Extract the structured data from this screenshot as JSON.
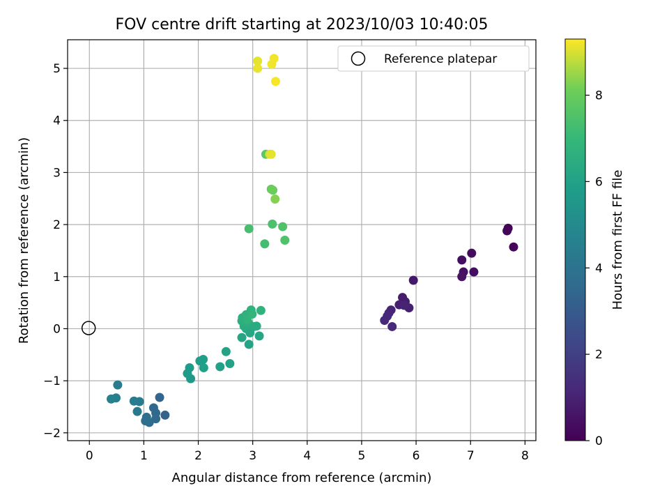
{
  "chart_data": {
    "type": "scatter",
    "title": "FOV centre drift starting at 2023/10/03 10:40:05",
    "xlabel": "Angular distance from reference (arcmin)",
    "ylabel": "Rotation from reference (arcmin)",
    "xlim": [
      -0.4,
      8.2
    ],
    "ylim": [
      -2.15,
      5.55
    ],
    "xticks": [
      0,
      1,
      2,
      3,
      4,
      5,
      6,
      7,
      8
    ],
    "yticks": [
      -2,
      -1,
      0,
      1,
      2,
      3,
      4,
      5
    ],
    "grid": true,
    "legend": {
      "position": "upper right",
      "entries": [
        "Reference platepar"
      ]
    },
    "reference_point": {
      "x": 0,
      "y": 0,
      "label": "Reference platepar"
    },
    "colorbar": {
      "label": "Hours from first FF file",
      "colormap": "viridis",
      "range": [
        0,
        9.3
      ],
      "ticks": [
        0,
        2,
        4,
        6,
        8
      ]
    },
    "points": [
      {
        "x": 7.69,
        "y": 1.93,
        "c": 0.05
      },
      {
        "x": 7.67,
        "y": 1.88,
        "c": 0.1
      },
      {
        "x": 7.79,
        "y": 1.57,
        "c": 0.15
      },
      {
        "x": 7.02,
        "y": 1.45,
        "c": 0.3
      },
      {
        "x": 7.06,
        "y": 1.09,
        "c": 0.35
      },
      {
        "x": 6.84,
        "y": 1.32,
        "c": 0.4
      },
      {
        "x": 6.87,
        "y": 1.09,
        "c": 0.45
      },
      {
        "x": 6.84,
        "y": 1.0,
        "c": 0.5
      },
      {
        "x": 5.95,
        "y": 0.93,
        "c": 0.7
      },
      {
        "x": 5.75,
        "y": 0.6,
        "c": 0.8
      },
      {
        "x": 5.8,
        "y": 0.52,
        "c": 0.85
      },
      {
        "x": 5.69,
        "y": 0.46,
        "c": 0.9
      },
      {
        "x": 5.87,
        "y": 0.4,
        "c": 0.95
      },
      {
        "x": 5.78,
        "y": 0.45,
        "c": 1.0
      },
      {
        "x": 5.54,
        "y": 0.36,
        "c": 1.05
      },
      {
        "x": 5.5,
        "y": 0.3,
        "c": 1.1
      },
      {
        "x": 5.47,
        "y": 0.24,
        "c": 1.15
      },
      {
        "x": 5.42,
        "y": 0.16,
        "c": 1.2
      },
      {
        "x": 5.56,
        "y": 0.04,
        "c": 1.25
      },
      {
        "x": 1.39,
        "y": -1.66,
        "c": 3.3
      },
      {
        "x": 1.29,
        "y": -1.32,
        "c": 3.4
      },
      {
        "x": 1.18,
        "y": -1.52,
        "c": 3.5
      },
      {
        "x": 1.22,
        "y": -1.62,
        "c": 3.55
      },
      {
        "x": 1.22,
        "y": -1.73,
        "c": 3.6
      },
      {
        "x": 1.1,
        "y": -1.8,
        "c": 3.7
      },
      {
        "x": 1.03,
        "y": -1.77,
        "c": 3.75
      },
      {
        "x": 1.05,
        "y": -1.7,
        "c": 3.8
      },
      {
        "x": 0.88,
        "y": -1.59,
        "c": 4.2
      },
      {
        "x": 0.92,
        "y": -1.4,
        "c": 4.3
      },
      {
        "x": 0.82,
        "y": -1.39,
        "c": 4.35
      },
      {
        "x": 0.52,
        "y": -1.08,
        "c": 4.4
      },
      {
        "x": 0.49,
        "y": -1.33,
        "c": 4.5
      },
      {
        "x": 0.4,
        "y": -1.35,
        "c": 4.55
      },
      {
        "x": 1.86,
        "y": -0.96,
        "c": 5.6
      },
      {
        "x": 1.8,
        "y": -0.86,
        "c": 5.7
      },
      {
        "x": 1.84,
        "y": -0.75,
        "c": 5.75
      },
      {
        "x": 2.03,
        "y": -0.62,
        "c": 5.8
      },
      {
        "x": 2.09,
        "y": -0.59,
        "c": 5.85
      },
      {
        "x": 2.1,
        "y": -0.75,
        "c": 5.9
      },
      {
        "x": 2.4,
        "y": -0.73,
        "c": 5.95
      },
      {
        "x": 2.51,
        "y": -0.44,
        "c": 6.0
      },
      {
        "x": 2.58,
        "y": -0.67,
        "c": 6.05
      },
      {
        "x": 2.93,
        "y": -0.3,
        "c": 6.1
      },
      {
        "x": 2.8,
        "y": -0.17,
        "c": 6.15
      },
      {
        "x": 3.12,
        "y": -0.14,
        "c": 6.2
      },
      {
        "x": 2.95,
        "y": -0.08,
        "c": 6.25
      },
      {
        "x": 2.88,
        "y": 0.0,
        "c": 6.3
      },
      {
        "x": 3.02,
        "y": 0.04,
        "c": 6.35
      },
      {
        "x": 3.07,
        "y": 0.05,
        "c": 6.4
      },
      {
        "x": 2.84,
        "y": 0.05,
        "c": 6.45
      },
      {
        "x": 2.92,
        "y": 0.11,
        "c": 6.5
      },
      {
        "x": 2.8,
        "y": 0.15,
        "c": 6.55
      },
      {
        "x": 2.81,
        "y": 0.21,
        "c": 6.6
      },
      {
        "x": 2.88,
        "y": 0.27,
        "c": 6.65
      },
      {
        "x": 2.97,
        "y": 0.36,
        "c": 6.7
      },
      {
        "x": 3.15,
        "y": 0.35,
        "c": 6.75
      },
      {
        "x": 2.9,
        "y": 0.18,
        "c": 6.8
      },
      {
        "x": 2.99,
        "y": 0.28,
        "c": 6.85
      },
      {
        "x": 3.22,
        "y": 1.63,
        "c": 7.3
      },
      {
        "x": 2.93,
        "y": 1.92,
        "c": 7.35
      },
      {
        "x": 3.36,
        "y": 2.01,
        "c": 7.45
      },
      {
        "x": 3.55,
        "y": 1.96,
        "c": 7.5
      },
      {
        "x": 3.59,
        "y": 1.7,
        "c": 7.55
      },
      {
        "x": 3.24,
        "y": 3.35,
        "c": 7.8
      },
      {
        "x": 3.34,
        "y": 2.68,
        "c": 8.0
      },
      {
        "x": 3.37,
        "y": 2.66,
        "c": 8.05
      },
      {
        "x": 3.41,
        "y": 2.49,
        "c": 8.3
      },
      {
        "x": 3.31,
        "y": 3.35,
        "c": 9.0
      },
      {
        "x": 3.34,
        "y": 3.35,
        "c": 9.1
      },
      {
        "x": 3.09,
        "y": 5.14,
        "c": 9.1
      },
      {
        "x": 3.09,
        "y": 5.0,
        "c": 9.15
      },
      {
        "x": 3.39,
        "y": 5.19,
        "c": 9.2
      },
      {
        "x": 3.35,
        "y": 5.08,
        "c": 9.2
      },
      {
        "x": 3.42,
        "y": 4.75,
        "c": 9.25
      }
    ]
  }
}
